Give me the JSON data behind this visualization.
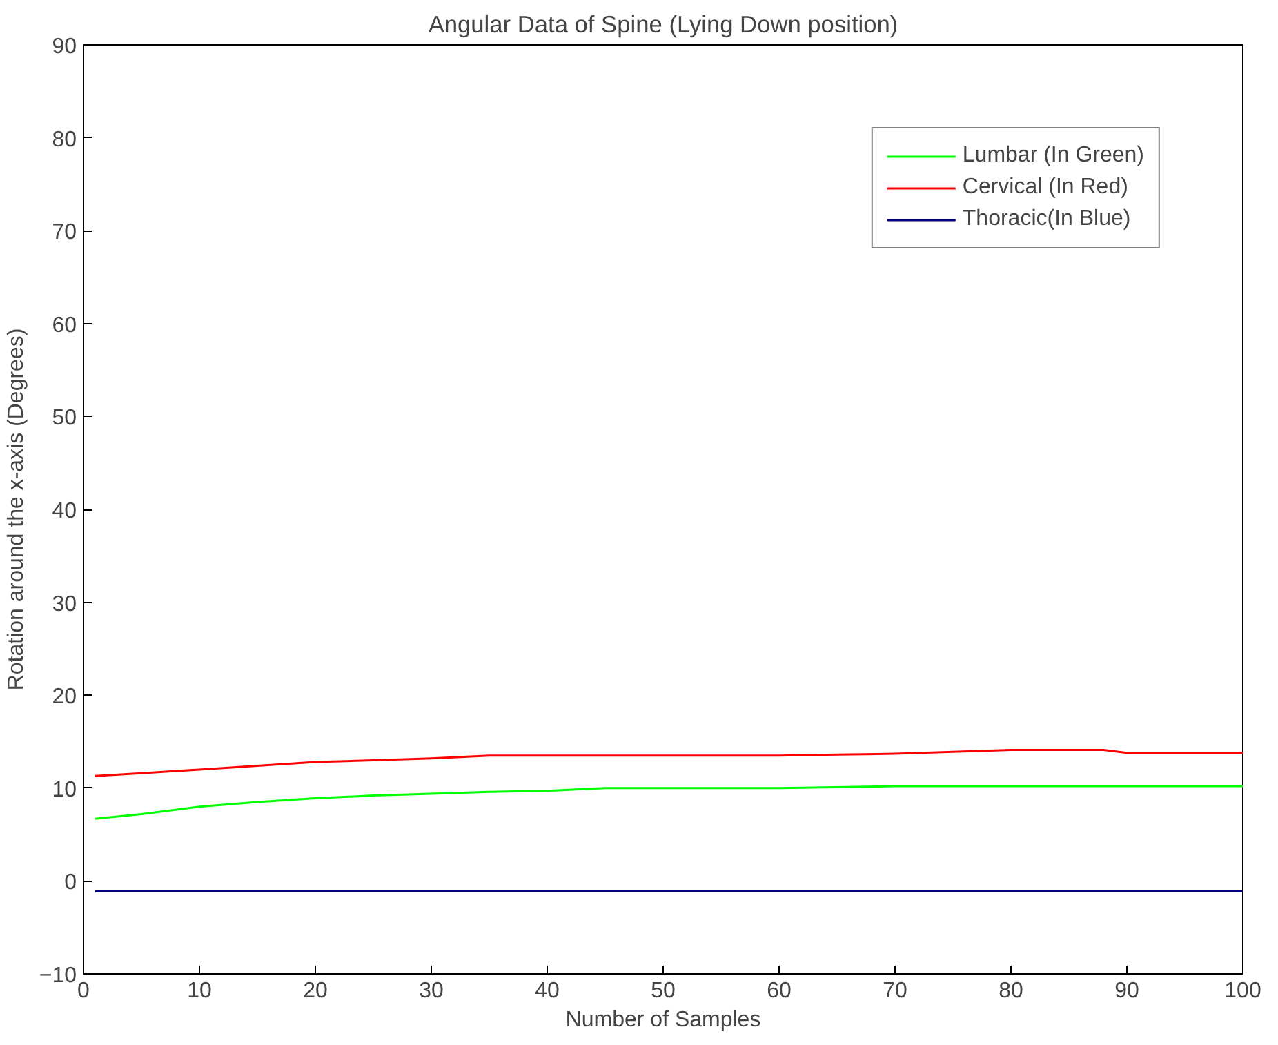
{
  "chart_data": {
    "type": "line",
    "title": "Angular Data of Spine (Lying Down position)",
    "xlabel": "Number of Samples",
    "ylabel": "Rotation around the x-axis (Degrees)",
    "xlim": [
      0,
      100
    ],
    "xticks": [
      0,
      10,
      20,
      30,
      40,
      50,
      60,
      70,
      80,
      90,
      100
    ],
    "ylim": [
      -10,
      90
    ],
    "yticks": [
      -10,
      0,
      10,
      20,
      30,
      40,
      50,
      60,
      70,
      80,
      90
    ],
    "grid": false,
    "legend": "top right",
    "series": [
      {
        "name": "Lumbar (In Green)",
        "color": "#00ff00",
        "x": [
          1,
          5,
          10,
          15,
          20,
          25,
          30,
          35,
          40,
          45,
          50,
          60,
          65,
          70,
          80,
          90,
          100
        ],
        "values": [
          6.7,
          7.2,
          8.0,
          8.5,
          8.9,
          9.2,
          9.4,
          9.6,
          9.7,
          10.0,
          10.0,
          10.0,
          10.1,
          10.2,
          10.2,
          10.2,
          10.2
        ]
      },
      {
        "name": "Cervical (In Red)",
        "color": "#ff0000",
        "x": [
          1,
          5,
          10,
          15,
          20,
          25,
          30,
          35,
          40,
          50,
          60,
          65,
          70,
          80,
          88,
          90,
          100
        ],
        "values": [
          11.3,
          11.6,
          12.0,
          12.4,
          12.8,
          13.0,
          13.2,
          13.5,
          13.5,
          13.5,
          13.5,
          13.6,
          13.7,
          14.1,
          14.1,
          13.8,
          13.8
        ]
      },
      {
        "name": "Thoracic(In Blue)",
        "color": "#000080",
        "x": [
          1,
          100
        ],
        "values": [
          -1.1,
          -1.1
        ]
      }
    ]
  }
}
